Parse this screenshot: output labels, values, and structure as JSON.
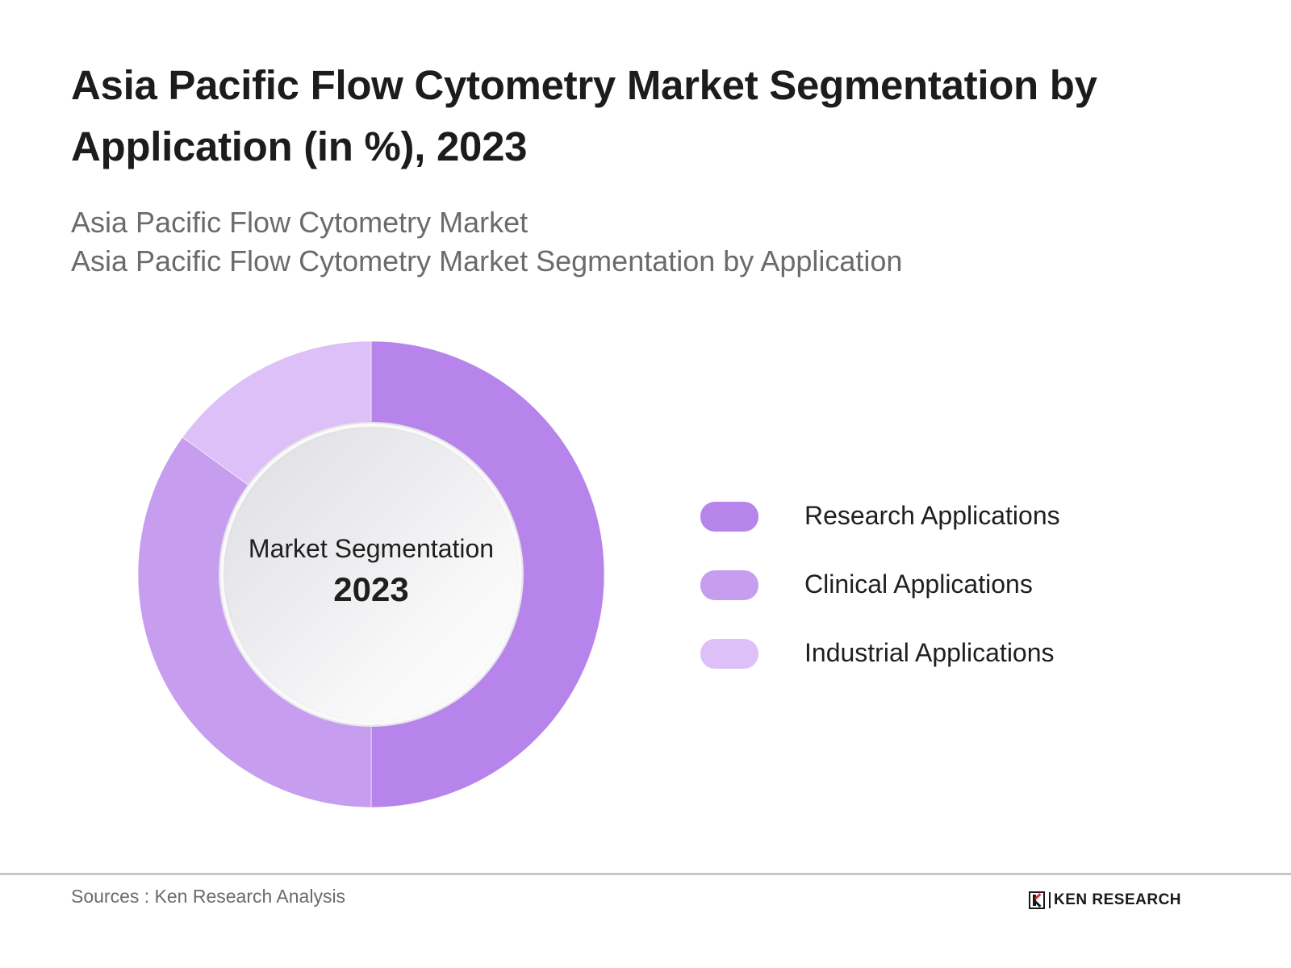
{
  "header": {
    "title": "Asia Pacific Flow Cytometry Market Segmentation by Application (in %), 2023",
    "subtitle_lines": [
      "Asia Pacific Flow Cytometry Market",
      "Asia Pacific Flow Cytometry Market Segmentation by Application"
    ]
  },
  "center": {
    "label": "Market Segmentation",
    "year": "2023"
  },
  "legend": [
    {
      "label": "Research Applications",
      "color": "#b784eb"
    },
    {
      "label": "Clinical Applications",
      "color": "#c79df0"
    },
    {
      "label": "Industrial Applications",
      "color": "#ddc0f7"
    }
  ],
  "footer": {
    "source": "Sources : Ken Research Analysis",
    "logo_text": "KEN RESEARCH",
    "logo_icon": "ken-research-k-icon"
  },
  "chart_data": {
    "type": "pie",
    "subtype": "donut",
    "title": "Asia Pacific Flow Cytometry Market Segmentation by Application (in %), 2023",
    "center_text": [
      "Market Segmentation",
      "2023"
    ],
    "categories": [
      "Research Applications",
      "Clinical Applications",
      "Industrial Applications"
    ],
    "values": [
      50,
      35,
      15
    ],
    "unit": "%",
    "colors": [
      "#b784eb",
      "#c79df0",
      "#ddc0f7"
    ],
    "start_angle": "12 o'clock",
    "direction": "clockwise",
    "legend_position": "right",
    "data_labels": false
  }
}
